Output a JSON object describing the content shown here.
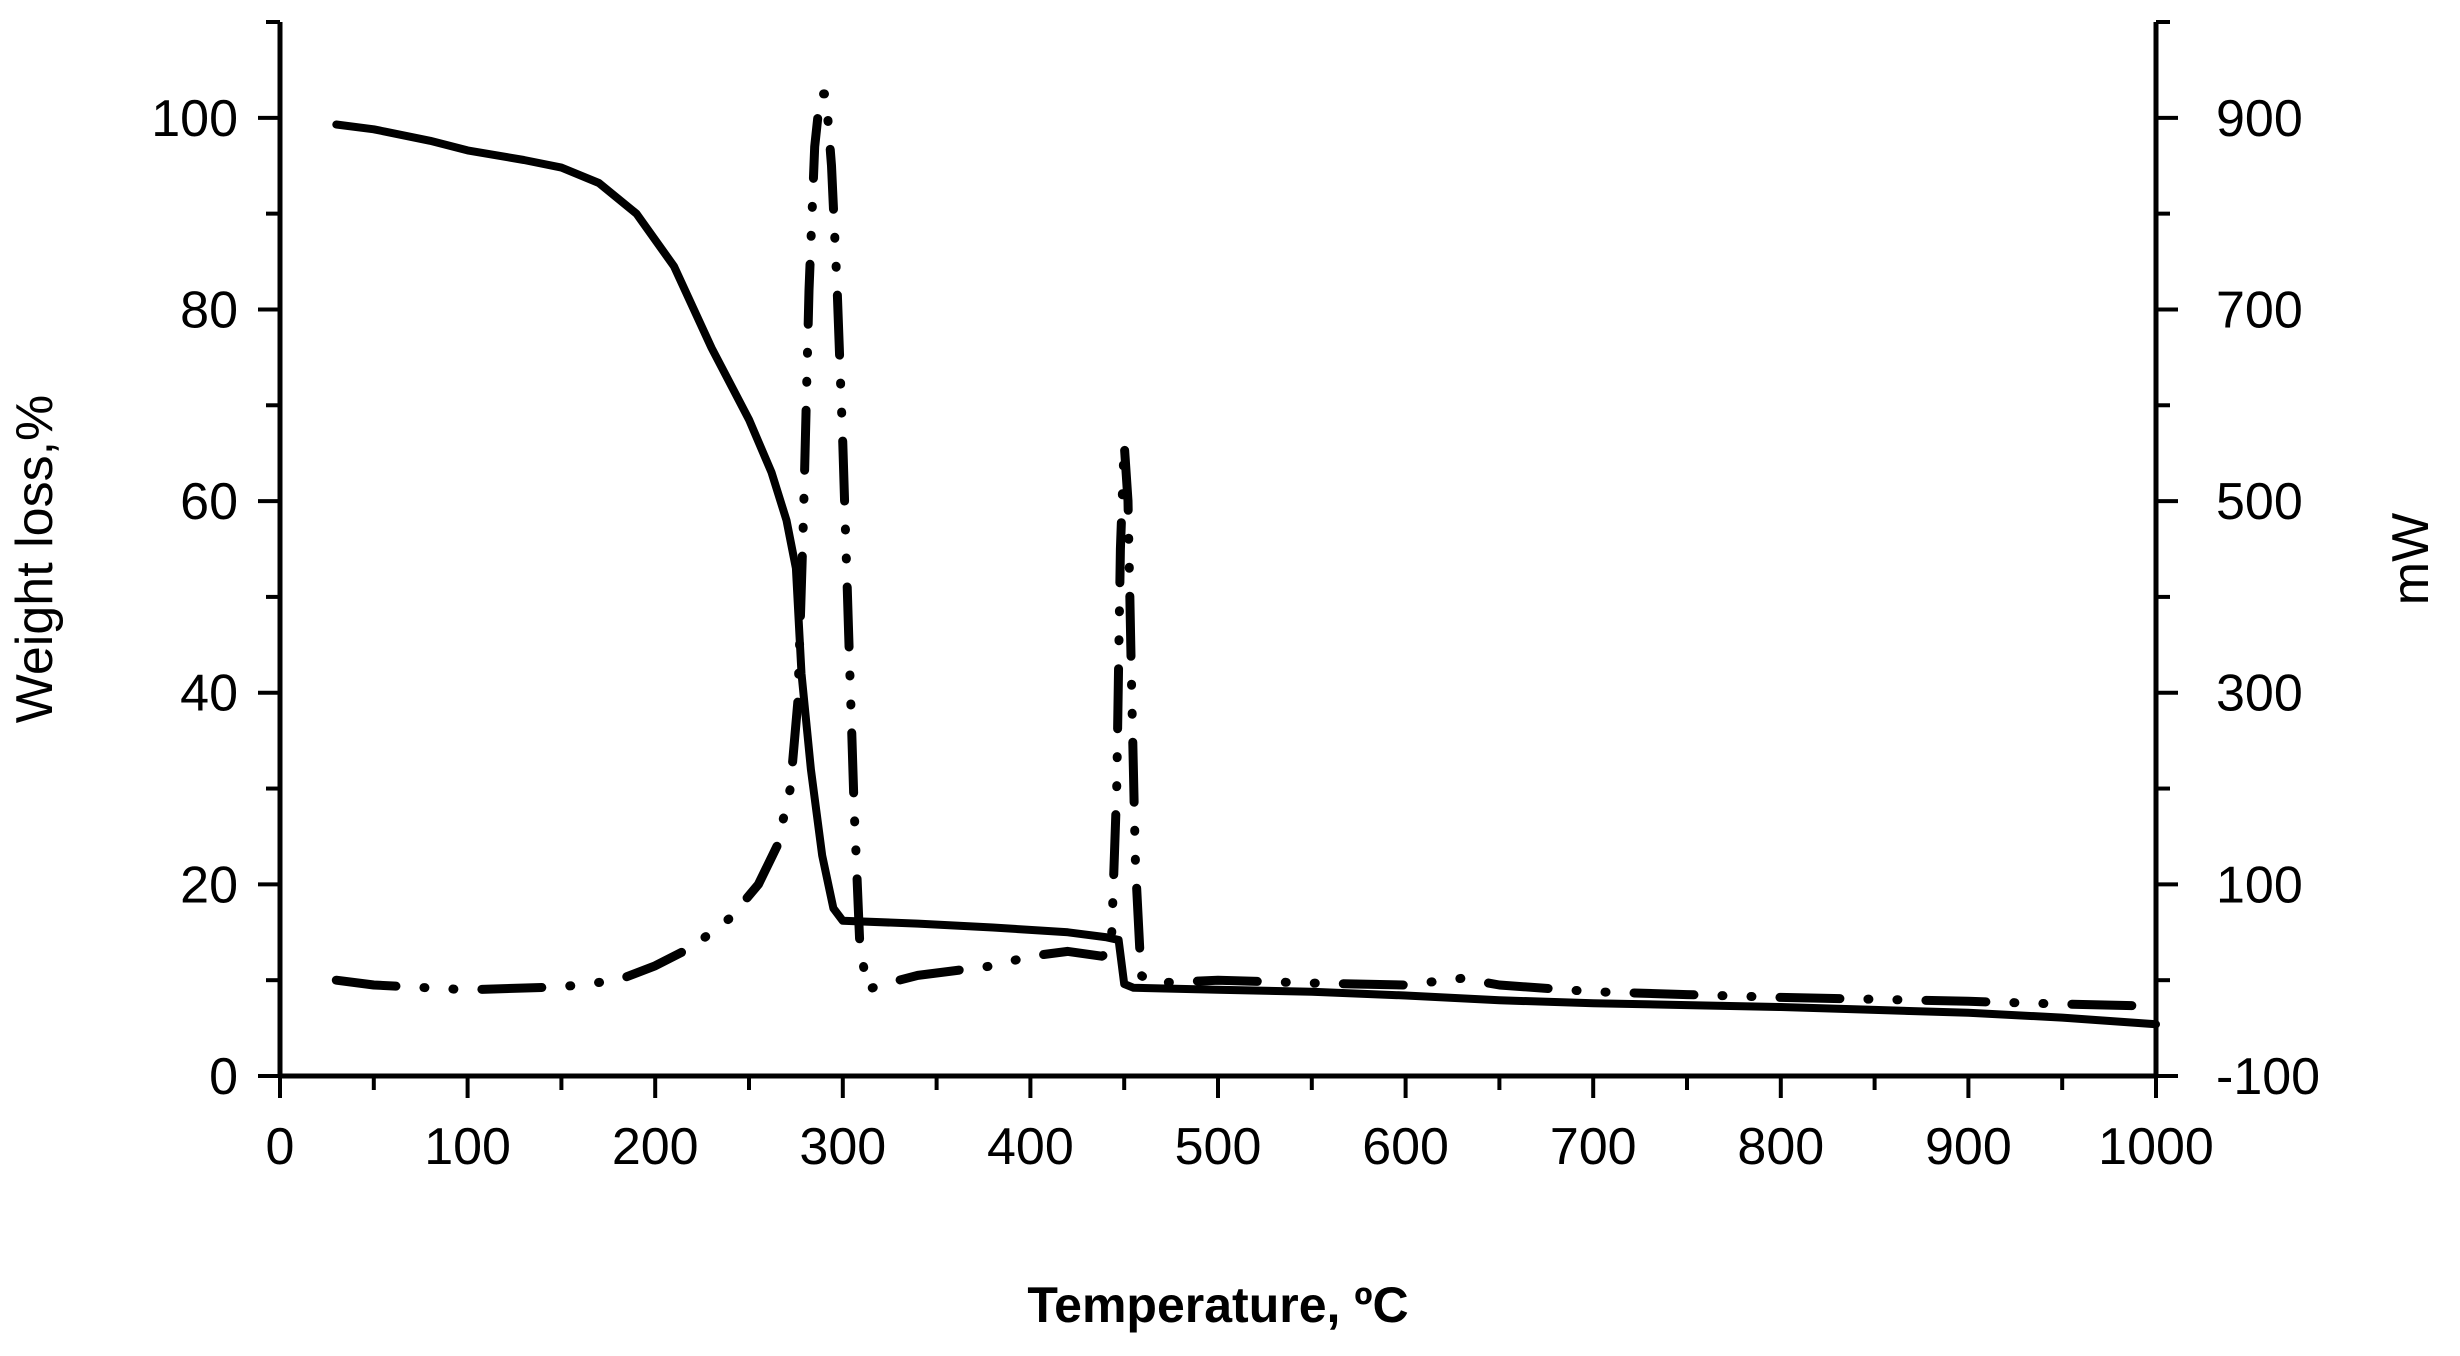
{
  "chart_data": {
    "type": "line",
    "title": "",
    "xlabel": "Temperature, ºC",
    "ylabel": "Weight loss,%",
    "y2label": "mW",
    "xlim": [
      0,
      1000
    ],
    "ylim": [
      0,
      110
    ],
    "y2lim": [
      -100,
      1000
    ],
    "x_ticks": [
      0,
      100,
      200,
      300,
      400,
      500,
      600,
      700,
      800,
      900,
      1000
    ],
    "y_ticks": [
      0,
      20,
      40,
      60,
      80,
      100
    ],
    "y2_ticks": [
      -100,
      100,
      300,
      500,
      700,
      900
    ],
    "grid": false,
    "legend": "none",
    "series": [
      {
        "axis": "left",
        "style": "solid",
        "color": "#000000",
        "points": [
          [
            30,
            99.3
          ],
          [
            50,
            98.8
          ],
          [
            80,
            97.6
          ],
          [
            100,
            96.6
          ],
          [
            130,
            95.6
          ],
          [
            150,
            94.8
          ],
          [
            170,
            93.2
          ],
          [
            190,
            90.0
          ],
          [
            210,
            84.5
          ],
          [
            230,
            76.0
          ],
          [
            250,
            68.5
          ],
          [
            262,
            63.0
          ],
          [
            270,
            58.0
          ],
          [
            275,
            53.0
          ],
          [
            278,
            42.0
          ],
          [
            283,
            32.0
          ],
          [
            289,
            23.0
          ],
          [
            295,
            17.5
          ],
          [
            300,
            16.2
          ],
          [
            340,
            15.9
          ],
          [
            380,
            15.5
          ],
          [
            420,
            15.0
          ],
          [
            440,
            14.5
          ],
          [
            447,
            14.2
          ],
          [
            450,
            9.6
          ],
          [
            455,
            9.2
          ],
          [
            500,
            9.0
          ],
          [
            550,
            8.8
          ],
          [
            600,
            8.4
          ],
          [
            650,
            7.9
          ],
          [
            700,
            7.6
          ],
          [
            750,
            7.4
          ],
          [
            800,
            7.2
          ],
          [
            850,
            6.9
          ],
          [
            900,
            6.6
          ],
          [
            950,
            6.1
          ],
          [
            1000,
            5.4
          ]
        ]
      },
      {
        "axis": "right",
        "style": "dash-dot-dot",
        "color": "#000000",
        "points": [
          [
            30,
            0
          ],
          [
            50,
            -5
          ],
          [
            100,
            -10
          ],
          [
            150,
            -7
          ],
          [
            180,
            0
          ],
          [
            200,
            15
          ],
          [
            220,
            35
          ],
          [
            240,
            65
          ],
          [
            255,
            100
          ],
          [
            265,
            140
          ],
          [
            272,
            200
          ],
          [
            276,
            290
          ],
          [
            279,
            480
          ],
          [
            282,
            720
          ],
          [
            285,
            870
          ],
          [
            288,
            925
          ],
          [
            291,
            925
          ],
          [
            294,
            850
          ],
          [
            297,
            720
          ],
          [
            300,
            560
          ],
          [
            303,
            370
          ],
          [
            306,
            180
          ],
          [
            309,
            40
          ],
          [
            313,
            -10
          ],
          [
            320,
            -5
          ],
          [
            340,
            5
          ],
          [
            360,
            10
          ],
          [
            380,
            15
          ],
          [
            400,
            25
          ],
          [
            420,
            30
          ],
          [
            438,
            25
          ],
          [
            443,
            30
          ],
          [
            446,
            200
          ],
          [
            448,
            450
          ],
          [
            450,
            560
          ],
          [
            452,
            500
          ],
          [
            454,
            300
          ],
          [
            456,
            120
          ],
          [
            459,
            5
          ],
          [
            465,
            -3
          ],
          [
            500,
            0
          ],
          [
            550,
            -3
          ],
          [
            600,
            -5
          ],
          [
            630,
            2
          ],
          [
            650,
            -5
          ],
          [
            700,
            -12
          ],
          [
            750,
            -15
          ],
          [
            800,
            -18
          ],
          [
            850,
            -20
          ],
          [
            900,
            -22
          ],
          [
            950,
            -25
          ],
          [
            1000,
            -27
          ]
        ]
      }
    ]
  }
}
